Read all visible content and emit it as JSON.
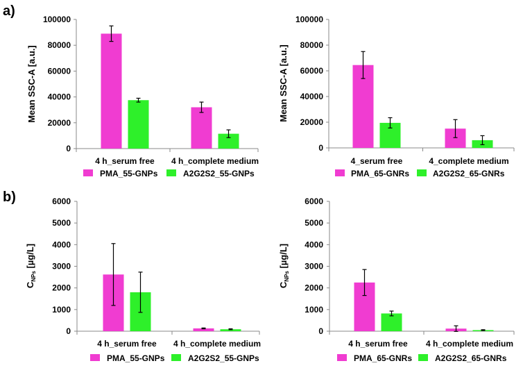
{
  "panel_labels": [
    "a)",
    "b)"
  ],
  "colors": {
    "series1": "#f03cd1",
    "series2": "#2ef02a",
    "axis": "#888888",
    "error": "#000000"
  },
  "chart_data": [
    {
      "type": "bar",
      "ylabel": "Mean SSC-A  [a.u.]",
      "ylabel_sub": "",
      "ylabel_rest": "",
      "ylim": [
        0,
        100000
      ],
      "yticks": [
        "0",
        "20000",
        "40000",
        "60000",
        "80000",
        "100000"
      ],
      "categories": [
        "4 h_serum free",
        "4 h_complete medium"
      ],
      "series": [
        {
          "name": "PMA_55-GNPs",
          "values": [
            89000,
            32000
          ],
          "errors": [
            6000,
            4000
          ]
        },
        {
          "name": "A2G2S2_55-GNPs",
          "values": [
            37500,
            11500
          ],
          "errors": [
            1500,
            3000
          ]
        }
      ]
    },
    {
      "type": "bar",
      "ylabel": "Mean SSC-A  [a.u.]",
      "ylabel_sub": "",
      "ylabel_rest": "",
      "ylim": [
        0,
        100000
      ],
      "yticks": [
        "0",
        "20000",
        "40000",
        "60000",
        "80000",
        "100000"
      ],
      "categories": [
        "4_serum free",
        "4_complete medium"
      ],
      "series": [
        {
          "name": "PMA_65-GNRs",
          "values": [
            64500,
            15000
          ],
          "errors": [
            10500,
            7000
          ]
        },
        {
          "name": "A2G2S2_65-GNRs",
          "values": [
            19500,
            6000
          ],
          "errors": [
            4000,
            3500
          ]
        }
      ]
    },
    {
      "type": "bar",
      "ylabel": "C",
      "ylabel_sub": "NPs",
      "ylabel_rest": " [µg/L]",
      "ylim": [
        0,
        6000
      ],
      "yticks": [
        "0",
        "1000",
        "2000",
        "3000",
        "4000",
        "5000",
        "6000"
      ],
      "categories": [
        "4 h_serum free",
        "4 h_complete medium"
      ],
      "series": [
        {
          "name": "PMA_55-GNPs",
          "values": [
            2620,
            130
          ],
          "errors": [
            1430,
            20
          ]
        },
        {
          "name": "A2G2S2_55-GNPs",
          "values": [
            1800,
            90
          ],
          "errors": [
            930,
            20
          ]
        }
      ]
    },
    {
      "type": "bar",
      "ylabel": "C",
      "ylabel_sub": "NPs",
      "ylabel_rest": " [µg/L]",
      "ylim": [
        0,
        6000
      ],
      "yticks": [
        "0",
        "1000",
        "2000",
        "3000",
        "4000",
        "5000",
        "6000"
      ],
      "categories": [
        "4 h_serum free",
        "4 h_complete medium"
      ],
      "series": [
        {
          "name": "PMA_65-GNRs",
          "values": [
            2250,
            120
          ],
          "errors": [
            600,
            130
          ]
        },
        {
          "name": "A2G2S2_65-GNRs",
          "values": [
            820,
            50
          ],
          "errors": [
            110,
            20
          ]
        }
      ]
    }
  ]
}
